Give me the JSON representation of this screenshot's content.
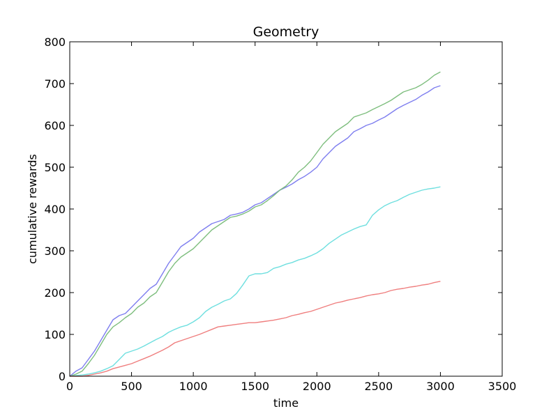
{
  "chart_data": {
    "type": "line",
    "title": "Geometry",
    "xlabel": "time",
    "ylabel": "cumulative rewards",
    "xlim": [
      0,
      3500
    ],
    "ylim": [
      0,
      800
    ],
    "xticks": [
      0,
      500,
      1000,
      1500,
      2000,
      2500,
      3000,
      3500
    ],
    "yticks": [
      0,
      100,
      200,
      300,
      400,
      500,
      600,
      700,
      800
    ],
    "grid": false,
    "legend": "none",
    "series": [
      {
        "color": "#7777ee",
        "points": [
          [
            0,
            0
          ],
          [
            50,
            12
          ],
          [
            100,
            20
          ],
          [
            150,
            40
          ],
          [
            200,
            60
          ],
          [
            250,
            85
          ],
          [
            300,
            110
          ],
          [
            350,
            135
          ],
          [
            400,
            145
          ],
          [
            450,
            150
          ],
          [
            500,
            165
          ],
          [
            550,
            180
          ],
          [
            600,
            195
          ],
          [
            650,
            210
          ],
          [
            700,
            220
          ],
          [
            750,
            245
          ],
          [
            800,
            270
          ],
          [
            850,
            290
          ],
          [
            900,
            310
          ],
          [
            950,
            320
          ],
          [
            1000,
            330
          ],
          [
            1050,
            345
          ],
          [
            1100,
            355
          ],
          [
            1150,
            365
          ],
          [
            1200,
            370
          ],
          [
            1250,
            375
          ],
          [
            1300,
            385
          ],
          [
            1350,
            388
          ],
          [
            1400,
            392
          ],
          [
            1450,
            400
          ],
          [
            1500,
            410
          ],
          [
            1550,
            415
          ],
          [
            1600,
            425
          ],
          [
            1650,
            435
          ],
          [
            1700,
            445
          ],
          [
            1750,
            452
          ],
          [
            1800,
            460
          ],
          [
            1850,
            470
          ],
          [
            1900,
            478
          ],
          [
            1950,
            488
          ],
          [
            2000,
            500
          ],
          [
            2050,
            520
          ],
          [
            2100,
            535
          ],
          [
            2150,
            550
          ],
          [
            2200,
            560
          ],
          [
            2250,
            570
          ],
          [
            2300,
            585
          ],
          [
            2350,
            592
          ],
          [
            2400,
            600
          ],
          [
            2450,
            605
          ],
          [
            2500,
            613
          ],
          [
            2550,
            620
          ],
          [
            2600,
            630
          ],
          [
            2650,
            640
          ],
          [
            2700,
            648
          ],
          [
            2750,
            655
          ],
          [
            2800,
            662
          ],
          [
            2850,
            672
          ],
          [
            2900,
            680
          ],
          [
            2950,
            690
          ],
          [
            3000,
            695
          ]
        ]
      },
      {
        "color": "#77bb77",
        "points": [
          [
            0,
            0
          ],
          [
            50,
            5
          ],
          [
            100,
            12
          ],
          [
            150,
            30
          ],
          [
            200,
            50
          ],
          [
            250,
            75
          ],
          [
            300,
            100
          ],
          [
            350,
            118
          ],
          [
            400,
            128
          ],
          [
            450,
            140
          ],
          [
            500,
            150
          ],
          [
            550,
            165
          ],
          [
            600,
            175
          ],
          [
            650,
            190
          ],
          [
            700,
            200
          ],
          [
            750,
            225
          ],
          [
            800,
            250
          ],
          [
            850,
            270
          ],
          [
            900,
            285
          ],
          [
            950,
            295
          ],
          [
            1000,
            305
          ],
          [
            1050,
            320
          ],
          [
            1100,
            335
          ],
          [
            1150,
            350
          ],
          [
            1200,
            360
          ],
          [
            1250,
            370
          ],
          [
            1300,
            380
          ],
          [
            1350,
            383
          ],
          [
            1400,
            388
          ],
          [
            1450,
            395
          ],
          [
            1500,
            405
          ],
          [
            1550,
            410
          ],
          [
            1600,
            420
          ],
          [
            1650,
            432
          ],
          [
            1700,
            445
          ],
          [
            1750,
            455
          ],
          [
            1800,
            470
          ],
          [
            1850,
            488
          ],
          [
            1900,
            500
          ],
          [
            1950,
            515
          ],
          [
            2000,
            535
          ],
          [
            2050,
            555
          ],
          [
            2100,
            570
          ],
          [
            2150,
            585
          ],
          [
            2200,
            595
          ],
          [
            2250,
            605
          ],
          [
            2300,
            620
          ],
          [
            2350,
            625
          ],
          [
            2400,
            630
          ],
          [
            2450,
            638
          ],
          [
            2500,
            645
          ],
          [
            2550,
            652
          ],
          [
            2600,
            660
          ],
          [
            2650,
            670
          ],
          [
            2700,
            680
          ],
          [
            2750,
            685
          ],
          [
            2800,
            690
          ],
          [
            2850,
            698
          ],
          [
            2900,
            708
          ],
          [
            2950,
            720
          ],
          [
            3000,
            728
          ]
        ]
      },
      {
        "color": "#66dddd",
        "points": [
          [
            0,
            0
          ],
          [
            100,
            3
          ],
          [
            150,
            5
          ],
          [
            200,
            8
          ],
          [
            250,
            12
          ],
          [
            300,
            18
          ],
          [
            350,
            25
          ],
          [
            400,
            40
          ],
          [
            450,
            55
          ],
          [
            500,
            60
          ],
          [
            550,
            65
          ],
          [
            600,
            72
          ],
          [
            650,
            80
          ],
          [
            700,
            88
          ],
          [
            750,
            95
          ],
          [
            800,
            105
          ],
          [
            850,
            112
          ],
          [
            900,
            118
          ],
          [
            950,
            122
          ],
          [
            1000,
            130
          ],
          [
            1050,
            140
          ],
          [
            1100,
            155
          ],
          [
            1150,
            165
          ],
          [
            1200,
            172
          ],
          [
            1250,
            180
          ],
          [
            1300,
            185
          ],
          [
            1350,
            198
          ],
          [
            1400,
            218
          ],
          [
            1450,
            240
          ],
          [
            1500,
            245
          ],
          [
            1550,
            245
          ],
          [
            1600,
            248
          ],
          [
            1650,
            258
          ],
          [
            1700,
            262
          ],
          [
            1750,
            268
          ],
          [
            1800,
            272
          ],
          [
            1850,
            278
          ],
          [
            1900,
            282
          ],
          [
            1950,
            288
          ],
          [
            2000,
            295
          ],
          [
            2050,
            305
          ],
          [
            2100,
            318
          ],
          [
            2150,
            328
          ],
          [
            2200,
            338
          ],
          [
            2250,
            345
          ],
          [
            2300,
            352
          ],
          [
            2350,
            358
          ],
          [
            2400,
            362
          ],
          [
            2450,
            385
          ],
          [
            2500,
            398
          ],
          [
            2550,
            408
          ],
          [
            2600,
            415
          ],
          [
            2650,
            420
          ],
          [
            2700,
            428
          ],
          [
            2750,
            435
          ],
          [
            2800,
            440
          ],
          [
            2850,
            445
          ],
          [
            2900,
            448
          ],
          [
            2950,
            450
          ],
          [
            3000,
            453
          ]
        ]
      },
      {
        "color": "#ee7777",
        "points": [
          [
            0,
            0
          ],
          [
            100,
            0
          ],
          [
            150,
            2
          ],
          [
            200,
            5
          ],
          [
            250,
            8
          ],
          [
            300,
            12
          ],
          [
            350,
            18
          ],
          [
            400,
            22
          ],
          [
            450,
            26
          ],
          [
            500,
            30
          ],
          [
            550,
            36
          ],
          [
            600,
            42
          ],
          [
            650,
            48
          ],
          [
            700,
            55
          ],
          [
            750,
            62
          ],
          [
            800,
            70
          ],
          [
            850,
            80
          ],
          [
            900,
            85
          ],
          [
            950,
            90
          ],
          [
            1000,
            95
          ],
          [
            1050,
            100
          ],
          [
            1100,
            106
          ],
          [
            1150,
            112
          ],
          [
            1200,
            118
          ],
          [
            1250,
            120
          ],
          [
            1300,
            122
          ],
          [
            1350,
            124
          ],
          [
            1400,
            126
          ],
          [
            1450,
            128
          ],
          [
            1500,
            128
          ],
          [
            1550,
            130
          ],
          [
            1600,
            132
          ],
          [
            1650,
            134
          ],
          [
            1700,
            137
          ],
          [
            1750,
            140
          ],
          [
            1800,
            145
          ],
          [
            1850,
            148
          ],
          [
            1900,
            152
          ],
          [
            1950,
            155
          ],
          [
            2000,
            160
          ],
          [
            2050,
            165
          ],
          [
            2100,
            170
          ],
          [
            2150,
            175
          ],
          [
            2200,
            178
          ],
          [
            2250,
            182
          ],
          [
            2300,
            185
          ],
          [
            2350,
            188
          ],
          [
            2400,
            192
          ],
          [
            2450,
            195
          ],
          [
            2500,
            197
          ],
          [
            2550,
            200
          ],
          [
            2600,
            205
          ],
          [
            2650,
            208
          ],
          [
            2700,
            210
          ],
          [
            2750,
            213
          ],
          [
            2800,
            215
          ],
          [
            2850,
            218
          ],
          [
            2900,
            220
          ],
          [
            2950,
            224
          ],
          [
            3000,
            227
          ]
        ]
      }
    ]
  }
}
